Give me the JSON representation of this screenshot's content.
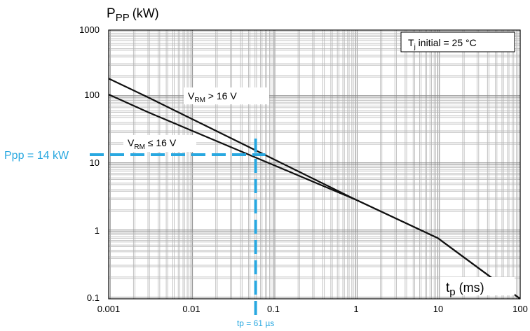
{
  "chart_data": {
    "type": "line",
    "xscale": "log",
    "yscale": "log",
    "xlim": [
      0.001,
      100
    ],
    "ylim": [
      0.1,
      1000
    ],
    "x_ticks": [
      "0.001",
      "0.01",
      "0.1",
      "1",
      "10",
      "100"
    ],
    "y_ticks": [
      "0.1",
      "1",
      "10",
      "100",
      "1000"
    ],
    "xlabel": {
      "main": "t",
      "sub": "p",
      "unit": "(ms)"
    },
    "ylabel": {
      "main": "P",
      "sub": "PP",
      "unit": "(kW)"
    },
    "grid": true,
    "legend_box": {
      "pre": "T",
      "sub": "j",
      "post": " initial = 25 °C",
      "placement": "top-right"
    },
    "series": [
      {
        "label_main": "V",
        "label_sub": "RM",
        "label_rest": " > 16 V",
        "points": [
          [
            0.001,
            190
          ],
          [
            0.003,
            100
          ],
          [
            1,
            3
          ],
          [
            10,
            0.8
          ],
          [
            100,
            0.1
          ]
        ]
      },
      {
        "label_main": "V",
        "label_sub": "RM",
        "label_rest": " ≤ 16 V",
        "points": [
          [
            0.001,
            110
          ],
          [
            0.003,
            60
          ],
          [
            1,
            3
          ],
          [
            10,
            0.8
          ],
          [
            100,
            0.1
          ]
        ]
      }
    ],
    "annotations": {
      "color": "#29a8e0",
      "ppp": {
        "text": "Ppp = 14 kW",
        "value": 14
      },
      "tp": {
        "text": "tp = 61 µs",
        "value": 0.061
      }
    }
  }
}
